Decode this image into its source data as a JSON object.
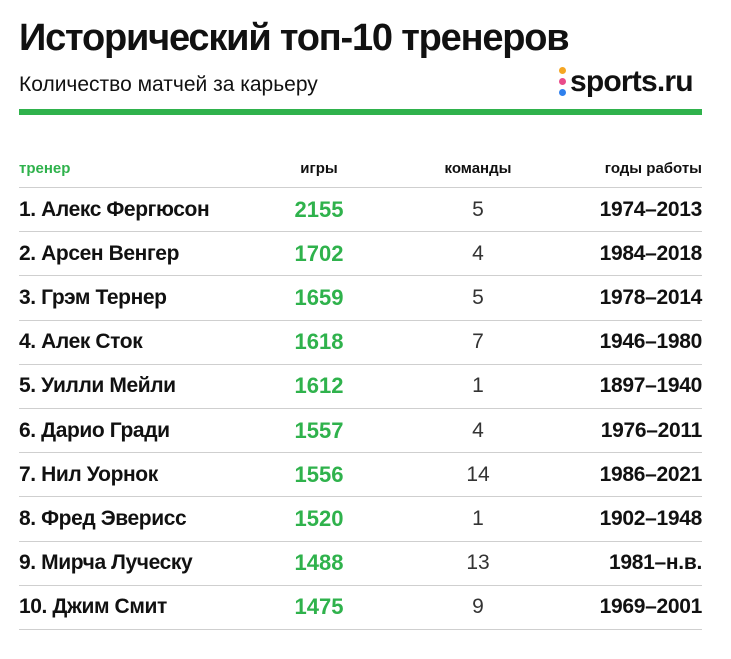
{
  "title": "Исторический топ-10 тренеров",
  "subtitle": "Количество матчей за карьеру",
  "logo": {
    "text": "sports.ru",
    "dot_colors": [
      "#f5a623",
      "#e94b8a",
      "#2f80ed"
    ]
  },
  "colors": {
    "accent_green": "#2fb24c",
    "text": "#111111",
    "divider": "#cfcfcf"
  },
  "chart_data": {
    "type": "table",
    "title": "Исторический топ-10 тренеров",
    "subtitle": "Количество матчей за карьеру",
    "columns": [
      "тренер",
      "игры",
      "команды",
      "годы работы"
    ],
    "rows": [
      {
        "coach": "1. Алекс Фергюсон",
        "games": "2155",
        "teams": "5",
        "years": "1974–2013"
      },
      {
        "coach": "2. Арсен Венгер",
        "games": "1702",
        "teams": "4",
        "years": "1984–2018"
      },
      {
        "coach": "3. Грэм Тернер",
        "games": "1659",
        "teams": "5",
        "years": "1978–2014"
      },
      {
        "coach": "4. Алек Сток",
        "games": "1618",
        "teams": "7",
        "years": "1946–1980"
      },
      {
        "coach": "5. Уилли Мейли",
        "games": "1612",
        "teams": "1",
        "years": "1897–1940"
      },
      {
        "coach": "6. Дарио Гради",
        "games": "1557",
        "teams": "4",
        "years": "1976–2011"
      },
      {
        "coach": "7. Нил Уорнок",
        "games": "1556",
        "teams": "14",
        "years": "1986–2021"
      },
      {
        "coach": "8. Фред Эверисс",
        "games": "1520",
        "teams": "1",
        "years": "1902–1948"
      },
      {
        "coach": "9. Мирча Луческу",
        "games": "1488",
        "teams": "13",
        "years": "1981–н.в."
      },
      {
        "coach": "10. Джим Смит",
        "games": "1475",
        "teams": "9",
        "years": "1969–2001"
      }
    ]
  }
}
